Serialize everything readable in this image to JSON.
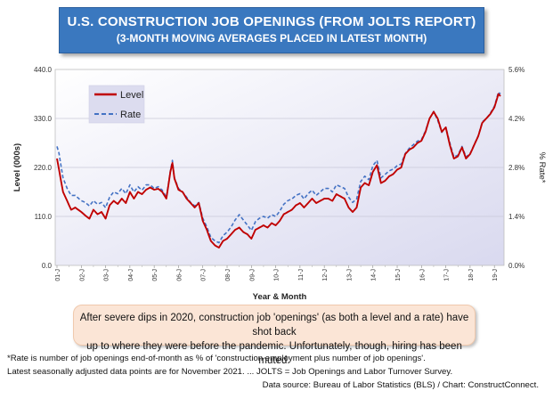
{
  "header": {
    "title": "U.S. CONSTRUCTION JOB OPENINGS (FROM JOLTS REPORT)",
    "subtitle": "(3-MONTH MOVING AVERAGES PLACED IN LATEST MONTH)"
  },
  "chart_data": {
    "type": "line",
    "xlabel": "Year & Month",
    "ylabel_left": "Level (000s)",
    "ylabel_right": "% Rate*",
    "ylim_left": [
      0,
      440
    ],
    "ylim_right": [
      0,
      5.6
    ],
    "yticks_left": [
      "0.0",
      "110.0",
      "220.0",
      "330.0",
      "440.0"
    ],
    "yticks_right": [
      "0.0%",
      "1.4%",
      "2.8%",
      "4.2%",
      "5.6%"
    ],
    "xticks": [
      "01-J",
      "02-J",
      "03-J",
      "04-J",
      "05-J",
      "06-J",
      "07-J",
      "08-J",
      "09-J",
      "10-J",
      "11-J",
      "12-J",
      "13-J",
      "14-J",
      "15-J",
      "16-J",
      "17-J",
      "18-J",
      "19-J",
      "20-J",
      "21-J"
    ],
    "legend_position": "top-left",
    "series": [
      {
        "name": "Level",
        "axis": "left",
        "color": "#c00000",
        "style": "solid",
        "anchors": [
          [
            0,
            240
          ],
          [
            1,
            215
          ],
          [
            3,
            165
          ],
          [
            5,
            145
          ],
          [
            7,
            125
          ],
          [
            9,
            130
          ],
          [
            12,
            120
          ],
          [
            14,
            112
          ],
          [
            16,
            105
          ],
          [
            18,
            125
          ],
          [
            20,
            115
          ],
          [
            22,
            120
          ],
          [
            24,
            105
          ],
          [
            26,
            135
          ],
          [
            28,
            145
          ],
          [
            30,
            138
          ],
          [
            32,
            150
          ],
          [
            34,
            140
          ],
          [
            36,
            165
          ],
          [
            38,
            150
          ],
          [
            40,
            165
          ],
          [
            42,
            160
          ],
          [
            44,
            170
          ],
          [
            46,
            175
          ],
          [
            48,
            170
          ],
          [
            50,
            172
          ],
          [
            52,
            165
          ],
          [
            54,
            150
          ],
          [
            56,
            210
          ],
          [
            57,
            230
          ],
          [
            58,
            195
          ],
          [
            60,
            170
          ],
          [
            62,
            165
          ],
          [
            64,
            150
          ],
          [
            66,
            140
          ],
          [
            68,
            130
          ],
          [
            70,
            140
          ],
          [
            72,
            100
          ],
          [
            74,
            80
          ],
          [
            76,
            55
          ],
          [
            78,
            45
          ],
          [
            80,
            40
          ],
          [
            82,
            55
          ],
          [
            84,
            60
          ],
          [
            86,
            70
          ],
          [
            88,
            80
          ],
          [
            90,
            85
          ],
          [
            92,
            75
          ],
          [
            94,
            70
          ],
          [
            96,
            60
          ],
          [
            98,
            80
          ],
          [
            100,
            85
          ],
          [
            102,
            90
          ],
          [
            104,
            85
          ],
          [
            106,
            95
          ],
          [
            108,
            90
          ],
          [
            110,
            100
          ],
          [
            112,
            115
          ],
          [
            114,
            120
          ],
          [
            116,
            125
          ],
          [
            118,
            135
          ],
          [
            120,
            140
          ],
          [
            122,
            130
          ],
          [
            124,
            140
          ],
          [
            126,
            150
          ],
          [
            128,
            140
          ],
          [
            130,
            145
          ],
          [
            132,
            150
          ],
          [
            134,
            150
          ],
          [
            136,
            145
          ],
          [
            138,
            160
          ],
          [
            140,
            155
          ],
          [
            142,
            150
          ],
          [
            144,
            130
          ],
          [
            146,
            120
          ],
          [
            148,
            130
          ],
          [
            150,
            175
          ],
          [
            152,
            185
          ],
          [
            154,
            180
          ],
          [
            156,
            210
          ],
          [
            158,
            225
          ],
          [
            160,
            185
          ],
          [
            162,
            190
          ],
          [
            164,
            200
          ],
          [
            166,
            205
          ],
          [
            168,
            215
          ],
          [
            170,
            220
          ],
          [
            172,
            250
          ],
          [
            174,
            260
          ],
          [
            176,
            265
          ],
          [
            178,
            275
          ],
          [
            180,
            280
          ],
          [
            182,
            300
          ],
          [
            184,
            330
          ],
          [
            186,
            345
          ],
          [
            188,
            330
          ],
          [
            190,
            300
          ],
          [
            192,
            310
          ],
          [
            194,
            270
          ],
          [
            196,
            240
          ],
          [
            198,
            245
          ],
          [
            200,
            265
          ],
          [
            202,
            240
          ],
          [
            204,
            250
          ],
          [
            206,
            270
          ],
          [
            208,
            290
          ],
          [
            210,
            320
          ],
          [
            212,
            330
          ],
          [
            214,
            340
          ],
          [
            216,
            355
          ],
          [
            218,
            385
          ],
          [
            219,
            380
          ]
        ]
      },
      {
        "name": "Rate",
        "axis": "right",
        "color": "#4472c4",
        "style": "dashed",
        "anchors": [
          [
            0,
            3.4
          ],
          [
            1,
            3.2
          ],
          [
            3,
            2.5
          ],
          [
            5,
            2.2
          ],
          [
            7,
            2.0
          ],
          [
            9,
            2.0
          ],
          [
            12,
            1.85
          ],
          [
            14,
            1.8
          ],
          [
            16,
            1.7
          ],
          [
            18,
            1.85
          ],
          [
            20,
            1.75
          ],
          [
            22,
            1.8
          ],
          [
            24,
            1.65
          ],
          [
            26,
            1.95
          ],
          [
            28,
            2.1
          ],
          [
            30,
            2.05
          ],
          [
            32,
            2.2
          ],
          [
            34,
            2.05
          ],
          [
            36,
            2.3
          ],
          [
            38,
            2.1
          ],
          [
            40,
            2.25
          ],
          [
            42,
            2.15
          ],
          [
            44,
            2.3
          ],
          [
            46,
            2.3
          ],
          [
            48,
            2.2
          ],
          [
            50,
            2.25
          ],
          [
            52,
            2.15
          ],
          [
            54,
            1.95
          ],
          [
            56,
            2.7
          ],
          [
            57,
            3.0
          ],
          [
            58,
            2.5
          ],
          [
            60,
            2.2
          ],
          [
            62,
            2.1
          ],
          [
            64,
            1.95
          ],
          [
            66,
            1.8
          ],
          [
            68,
            1.7
          ],
          [
            70,
            1.8
          ],
          [
            72,
            1.35
          ],
          [
            74,
            1.1
          ],
          [
            76,
            0.8
          ],
          [
            78,
            0.7
          ],
          [
            80,
            0.65
          ],
          [
            82,
            0.85
          ],
          [
            84,
            0.95
          ],
          [
            86,
            1.1
          ],
          [
            88,
            1.3
          ],
          [
            90,
            1.45
          ],
          [
            92,
            1.3
          ],
          [
            94,
            1.15
          ],
          [
            96,
            1.0
          ],
          [
            98,
            1.25
          ],
          [
            100,
            1.35
          ],
          [
            102,
            1.4
          ],
          [
            104,
            1.35
          ],
          [
            106,
            1.45
          ],
          [
            108,
            1.4
          ],
          [
            110,
            1.55
          ],
          [
            112,
            1.75
          ],
          [
            114,
            1.85
          ],
          [
            116,
            1.9
          ],
          [
            118,
            2.0
          ],
          [
            120,
            2.05
          ],
          [
            122,
            1.9
          ],
          [
            124,
            2.05
          ],
          [
            126,
            2.15
          ],
          [
            128,
            2.0
          ],
          [
            130,
            2.1
          ],
          [
            132,
            2.2
          ],
          [
            134,
            2.2
          ],
          [
            136,
            2.1
          ],
          [
            138,
            2.3
          ],
          [
            140,
            2.25
          ],
          [
            142,
            2.2
          ],
          [
            144,
            1.95
          ],
          [
            146,
            1.8
          ],
          [
            148,
            1.9
          ],
          [
            150,
            2.4
          ],
          [
            152,
            2.55
          ],
          [
            154,
            2.45
          ],
          [
            156,
            2.85
          ],
          [
            158,
            3.0
          ],
          [
            160,
            2.5
          ],
          [
            162,
            2.6
          ],
          [
            164,
            2.7
          ],
          [
            166,
            2.75
          ],
          [
            168,
            2.85
          ],
          [
            170,
            2.9
          ],
          [
            172,
            3.2
          ],
          [
            174,
            3.35
          ],
          [
            176,
            3.45
          ],
          [
            178,
            3.55
          ],
          [
            180,
            3.6
          ],
          [
            182,
            3.85
          ],
          [
            184,
            4.2
          ],
          [
            186,
            4.4
          ],
          [
            188,
            4.15
          ],
          [
            190,
            3.8
          ],
          [
            192,
            3.95
          ],
          [
            194,
            3.5
          ],
          [
            196,
            3.1
          ],
          [
            198,
            3.15
          ],
          [
            200,
            3.4
          ],
          [
            202,
            3.1
          ],
          [
            204,
            3.2
          ],
          [
            206,
            3.45
          ],
          [
            208,
            3.7
          ],
          [
            210,
            4.1
          ],
          [
            212,
            4.2
          ],
          [
            214,
            4.35
          ],
          [
            216,
            4.55
          ],
          [
            218,
            4.95
          ],
          [
            219,
            4.9
          ]
        ]
      }
    ]
  },
  "note": {
    "line1": "After severe dips in 2020, construction job 'openings' (as both a level and a rate) have shot back",
    "line2": "up to where they were before the pandemic. Unfortunately, though, hiring has been muted."
  },
  "footnotes": {
    "f1": "*Rate is number of job openings end-of-month as % of 'construction employment plus number of job openings'.",
    "f2": "Latest seasonally adjusted data points are for November 2021. ... JOLTS = Job Openings and Labor Turnover Survey.",
    "source": "Data source: Bureau of Labor Statistics (BLS) / Chart: ConstructConnect."
  }
}
